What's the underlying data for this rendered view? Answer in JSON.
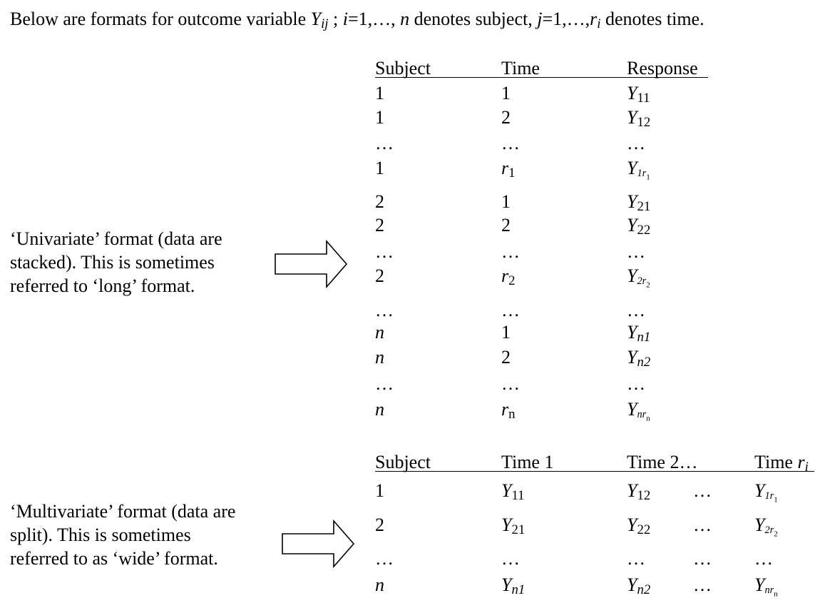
{
  "intro": {
    "before_y": "Below are formats for outcome variable ",
    "y": "Y",
    "y_sub": "ij",
    "after_y": " ; ",
    "i_var": "i",
    "i_range": "=1,…, ",
    "n_var": "n",
    "subject_text": " denotes subject, ",
    "j_var": "j",
    "j_range": "=1,…,",
    "r_var": "r",
    "r_sub": "i",
    "end_text": " denotes time."
  },
  "univariate": {
    "desc_lines": [
      "‘Univariate’ format (data are",
      "stacked).  This is sometimes",
      "referred to ‘long’ format."
    ],
    "headers": [
      "Subject",
      "Time",
      "Response"
    ],
    "rows": [
      {
        "subject": "1",
        "time": "1",
        "response_base": "Y",
        "response_sub": "11"
      },
      {
        "subject": "1",
        "time": "2",
        "response_base": "Y",
        "response_sub": "12"
      },
      {
        "subject": "…",
        "time": "…",
        "response_base": "…",
        "response_sub": ""
      },
      {
        "subject": "1",
        "time": "r",
        "time_sub": "1",
        "response_base": "Y",
        "response_sub": "1r",
        "response_subsub": "1"
      },
      {
        "subject": "2",
        "time": "1",
        "response_base": "Y",
        "response_sub": "21"
      },
      {
        "subject": "2",
        "time": "2",
        "response_base": "Y",
        "response_sub": "22"
      },
      {
        "subject": "…",
        "time": "…",
        "response_base": "…",
        "response_sub": ""
      },
      {
        "subject": "2",
        "time": "r",
        "time_sub": "2",
        "response_base": "Y",
        "response_sub": "2r",
        "response_subsub": "2"
      },
      {
        "subject": "…",
        "time": "…",
        "response_base": "…",
        "response_sub": ""
      },
      {
        "subject": "n",
        "time": "1",
        "response_base": "Y",
        "response_sub": "n1"
      },
      {
        "subject": "n",
        "time": "2",
        "response_base": "Y",
        "response_sub": "n2"
      },
      {
        "subject": "…",
        "time": "…",
        "response_base": "…",
        "response_sub": ""
      },
      {
        "subject": "n",
        "time": "r",
        "time_sub": "n",
        "response_base": "Y",
        "response_sub": "nr",
        "response_subsub": "n"
      }
    ]
  },
  "multivariate": {
    "desc_lines": [
      "‘Multivariate’ format (data are",
      "split).  This is sometimes",
      "referred to as ‘wide’ format."
    ],
    "headers": [
      "Subject",
      "Time 1",
      "Time 2…",
      "Time r"
    ],
    "header_last_sub": "i",
    "rows": [
      {
        "subject": "1",
        "t1": "Y",
        "t1_sub": "11",
        "t2": "Y",
        "t2_sub": "12",
        "dots": "…",
        "tr": "Y",
        "tr_sub": "1r",
        "tr_subsub": "1"
      },
      {
        "subject": "2",
        "t1": "Y",
        "t1_sub": "21",
        "t2": "Y",
        "t2_sub": "22",
        "dots": "…",
        "tr": "Y",
        "tr_sub": "2r",
        "tr_subsub": "2"
      },
      {
        "subject": "…",
        "t1": "…",
        "t1_sub": "",
        "t2": "…",
        "t2_sub": "",
        "dots": "…",
        "tr": "…",
        "tr_sub": "",
        "tr_subsub": ""
      },
      {
        "subject": "n",
        "t1": "Y",
        "t1_sub": "n1",
        "t2": "Y",
        "t2_sub": "n2",
        "dots": "…",
        "tr": "Y",
        "tr_sub": "nr",
        "tr_subsub": "n"
      }
    ]
  }
}
